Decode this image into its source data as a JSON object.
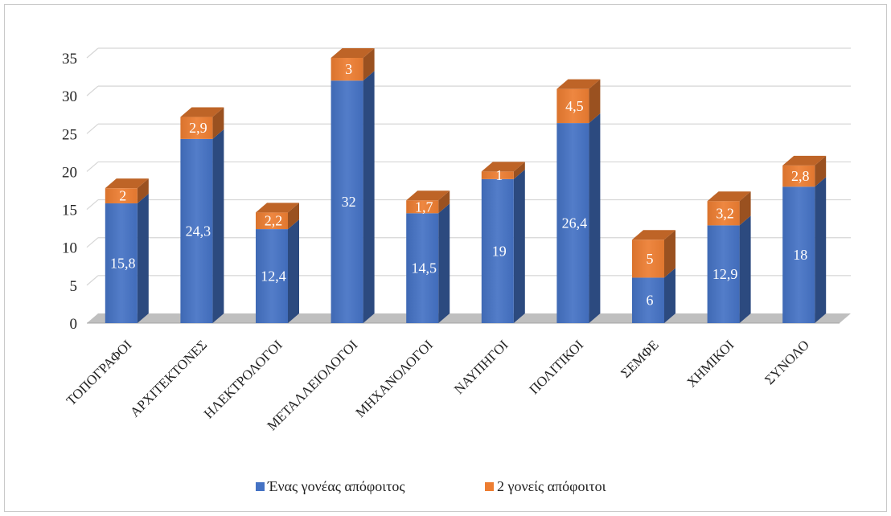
{
  "chart_data": {
    "type": "bar",
    "stacked": true,
    "style": "3d-column",
    "categories": [
      "ΤΟΠΟΓΡΑΦΟΙ",
      "ΑΡΧΙΤΕΚΤΟΝΕΣ",
      "ΗΛΕΚΤΡΟΛΟΓΟΙ",
      "ΜΕΤΑΛΛΕΙΟΛΟΓΟΙ",
      "ΜΗΧΑΝΟΛΟΓΟΙ",
      "ΝΑΥΠΗΓΟΙ",
      "ΠΟΛΙΤΙΚΟΙ",
      "ΣΕΜΦΕ",
      "ΧΗΜΙΚΟΙ",
      "ΣΥΝΟΛΟ"
    ],
    "series": [
      {
        "name": "Ένας γονέας απόφοιτος",
        "color": "#4472c4",
        "values": [
          15.8,
          24.3,
          12.4,
          32,
          14.5,
          19,
          26.4,
          6,
          12.9,
          18
        ],
        "labels": [
          "15,8",
          "24,3",
          "12,4",
          "32",
          "14,5",
          "19",
          "26,4",
          "6",
          "12,9",
          "18"
        ]
      },
      {
        "name": "2 γονείς απόφοιτοι",
        "color": "#ed7d31",
        "values": [
          2,
          2.9,
          2.2,
          3,
          1.7,
          1,
          4.5,
          5,
          3.2,
          2.8
        ],
        "labels": [
          "2",
          "2,9",
          "2,2",
          "3",
          "1,7",
          "1",
          "4,5",
          "5",
          "3,2",
          "2,8"
        ]
      }
    ],
    "ylim": [
      0,
      35
    ],
    "yticks": [
      "0",
      "5",
      "10",
      "15",
      "20",
      "25",
      "30",
      "35"
    ],
    "grid": true,
    "legend_position": "bottom"
  }
}
